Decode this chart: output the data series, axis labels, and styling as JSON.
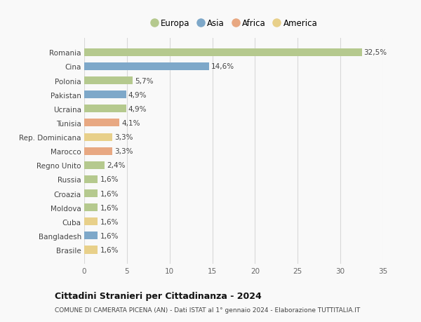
{
  "countries": [
    "Romania",
    "Cina",
    "Polonia",
    "Pakistan",
    "Ucraina",
    "Tunisia",
    "Rep. Dominicana",
    "Marocco",
    "Regno Unito",
    "Russia",
    "Croazia",
    "Moldova",
    "Cuba",
    "Bangladesh",
    "Brasile"
  ],
  "values": [
    32.5,
    14.6,
    5.7,
    4.9,
    4.9,
    4.1,
    3.3,
    3.3,
    2.4,
    1.6,
    1.6,
    1.6,
    1.6,
    1.6,
    1.6
  ],
  "labels": [
    "32,5%",
    "14,6%",
    "5,7%",
    "4,9%",
    "4,9%",
    "4,1%",
    "3,3%",
    "3,3%",
    "2,4%",
    "1,6%",
    "1,6%",
    "1,6%",
    "1,6%",
    "1,6%",
    "1,6%"
  ],
  "continents": [
    "Europa",
    "Asia",
    "Europa",
    "Asia",
    "Europa",
    "Africa",
    "America",
    "Africa",
    "Europa",
    "Europa",
    "Europa",
    "Europa",
    "America",
    "Asia",
    "America"
  ],
  "continent_colors": {
    "Europa": "#b5c98e",
    "Asia": "#7ea8c9",
    "Africa": "#e8a882",
    "America": "#e8d08a"
  },
  "legend_order": [
    "Europa",
    "Asia",
    "Africa",
    "America"
  ],
  "title": "Cittadini Stranieri per Cittadinanza - 2024",
  "subtitle": "COMUNE DI CAMERATA PICENA (AN) - Dati ISTAT al 1° gennaio 2024 - Elaborazione TUTTITALIA.IT",
  "xlim": [
    0,
    35
  ],
  "xticks": [
    0,
    5,
    10,
    15,
    20,
    25,
    30,
    35
  ],
  "background_color": "#f9f9f9",
  "grid_color": "#d8d8d8"
}
